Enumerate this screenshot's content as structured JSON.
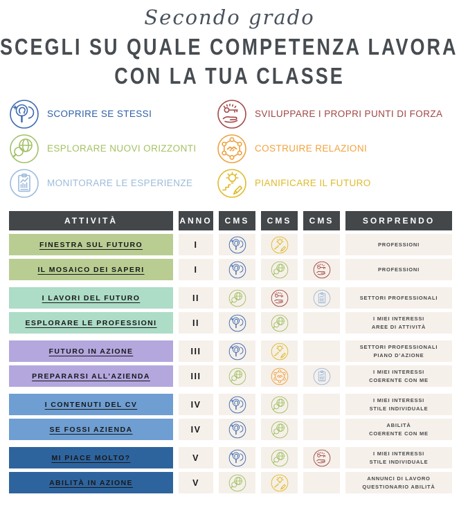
{
  "header": {
    "pretitle": "Secondo grado",
    "title_line1": "SCEGLI SU QUALE COMPETENZA LAVORARE",
    "title_line2": "CON LA TUA CLASSE"
  },
  "legend": {
    "items": [
      {
        "id": "scoprire",
        "label": "SCOPRIRE SE STESSI",
        "label_color": "#2d5fa7",
        "icon": "scoprire-se-stessi-icon"
      },
      {
        "id": "sviluppare",
        "label": "SVILUPPARE I PROPRI PUNTI DI FORZA",
        "label_color": "#a04643",
        "icon": "sviluppare-punti-di-forza-icon"
      },
      {
        "id": "esplorare",
        "label": "ESPLORARE NUOVI ORIZZONTI",
        "label_color": "#a4c162",
        "icon": "esplorare-nuovi-orizzonti-icon"
      },
      {
        "id": "costruire",
        "label": "COSTRUIRE RELAZIONI",
        "label_color": "#f2a23c",
        "icon": "costruire-relazioni-icon"
      },
      {
        "id": "monitorare",
        "label": "MONITORARE LE ESPERIENZE",
        "label_color": "#9cbbdb",
        "icon": "monitorare-le-esperienze-icon"
      },
      {
        "id": "pianificare",
        "label": "PIANIFICARE IL FUTURO",
        "label_color": "#ddba2e",
        "icon": "pianificare-il-futuro-icon"
      }
    ]
  },
  "table": {
    "columns": [
      "ATTIVITÀ",
      "ANNO",
      "CMS",
      "CMS",
      "CMS",
      "SORPRENDO"
    ],
    "rows": [
      {
        "title": "FINESTRA SUL FUTURO",
        "anno": "I",
        "group": "I",
        "cms": [
          "scoprire",
          "pianificare",
          null
        ],
        "sorprendo": "PROFESSIONI"
      },
      {
        "title": "IL MOSAICO DEI SAPERI",
        "anno": "I",
        "group": "I",
        "cms": [
          "scoprire",
          "esplorare",
          "sviluppare"
        ],
        "sorprendo": "PROFESSIONI"
      },
      {
        "title": "I LAVORI DEL FUTURO",
        "anno": "II",
        "group": "II",
        "cms": [
          "esplorare",
          "sviluppare",
          "monitorare"
        ],
        "sorprendo": "SETTORI PROFESSIONALI"
      },
      {
        "title": "ESPLORARE LE PROFESSIONI",
        "anno": "II",
        "group": "II",
        "cms": [
          "scoprire",
          "esplorare",
          null
        ],
        "sorprendo": "I MIEI INTERESSI\nAREE DI ATTIVITÀ"
      },
      {
        "title": "FUTURO IN AZIONE",
        "anno": "III",
        "group": "III",
        "cms": [
          "scoprire",
          "pianificare",
          null
        ],
        "sorprendo": "SETTORI PROFESSIONALI\nPIANO D’AZIONE"
      },
      {
        "title": "PREPARARSI ALL’AZIENDA",
        "anno": "III",
        "group": "III",
        "cms": [
          "esplorare",
          "costruire",
          "monitorare"
        ],
        "sorprendo": "I MIEI INTERESSI\nCOERENTE CON ME"
      },
      {
        "title": "I CONTENUTI DEL CV",
        "anno": "IV",
        "group": "IV",
        "cms": [
          "scoprire",
          "esplorare",
          null
        ],
        "sorprendo": "I MIEI INTERESSI\nSTILE INDIVIDUALE"
      },
      {
        "title": "SE FOSSI AZIENDA",
        "anno": "IV",
        "group": "IV",
        "cms": [
          "scoprire",
          "esplorare",
          null
        ],
        "sorprendo": "ABILITÀ\nCOERENTE CON ME"
      },
      {
        "title": "MI PIACE MOLTO?",
        "anno": "V",
        "group": "V",
        "cms": [
          "scoprire",
          "esplorare",
          "sviluppare"
        ],
        "sorprendo": "I MIEI INTERESSI\nSTILE INDIVIDUALE"
      },
      {
        "title": "ABILITÀ IN AZIONE",
        "anno": "V",
        "group": "V",
        "cms": [
          "esplorare",
          "pianificare",
          null
        ],
        "sorprendo": "ANNUNCI DI LAVORO\nQUESTIONARIO ABILITÀ"
      }
    ]
  },
  "colors": {
    "header_bg": "#44474a",
    "cell_bg": "#f6f0ea",
    "title_text": "#474c51",
    "groups": {
      "I": "#b9cd92",
      "II": "#addcc7",
      "III": "#b4a7de",
      "IV": "#6e9ed2",
      "V": "#2e649e"
    },
    "competencies": {
      "scoprire": "#3a69b0",
      "esplorare": "#a3c167",
      "monitorare": "#9cbadd",
      "sviluppare": "#a34845",
      "costruire": "#eea23f",
      "pianificare": "#dfbb2b"
    }
  }
}
